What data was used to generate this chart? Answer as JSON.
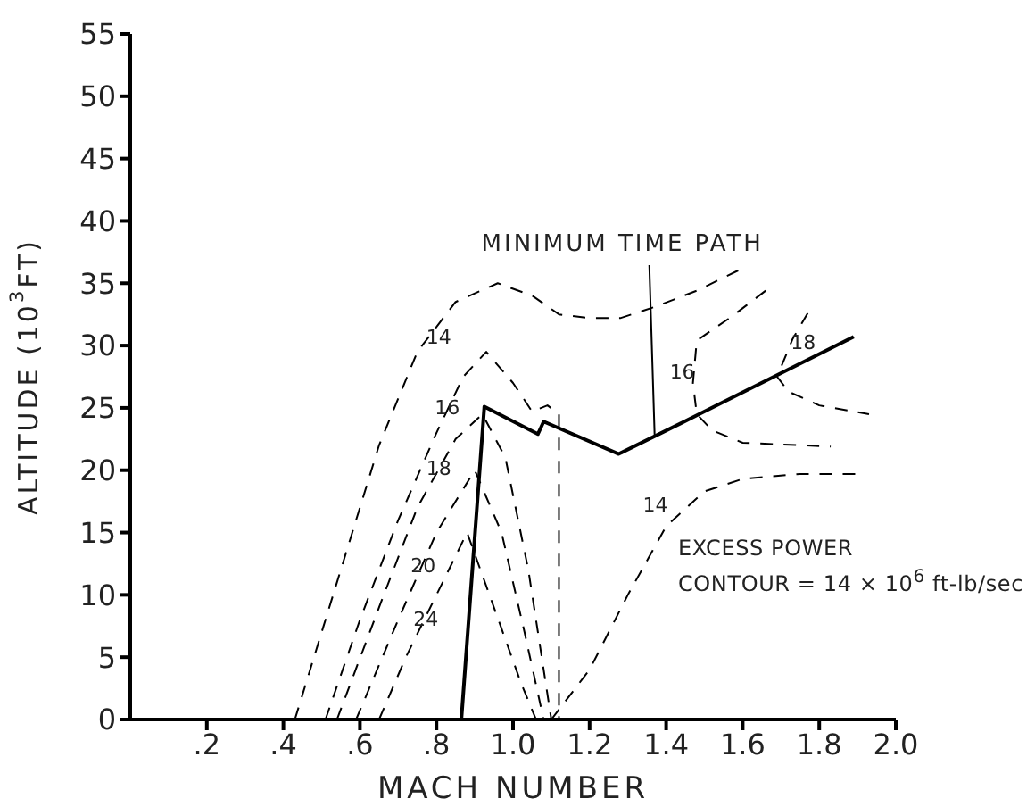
{
  "chart_data": {
    "type": "line",
    "xlabel": "MACH NUMBER",
    "ylabel": "ALTITUDE (10$^{3}$FT)",
    "xlim": [
      0,
      2.0
    ],
    "ylim": [
      0,
      55
    ],
    "xticks": [
      {
        "value": 0.2,
        "label": ".2"
      },
      {
        "value": 0.4,
        "label": ".4"
      },
      {
        "value": 0.6,
        "label": ".6"
      },
      {
        "value": 0.8,
        "label": ".8"
      },
      {
        "value": 1.0,
        "label": "1.0"
      },
      1.2,
      1.4,
      1.6,
      1.8,
      {
        "value": 2.0,
        "label": "2.0"
      }
    ],
    "yticks": [
      0,
      5,
      10,
      15,
      20,
      25,
      30,
      35,
      40,
      45,
      50,
      55
    ],
    "series": [
      {
        "name": "14",
        "color": "#000000",
        "line_style": "dashed",
        "x": [
          0.43,
          0.55,
          0.65,
          0.75,
          0.85,
          0.96,
          1.05,
          1.12,
          1.2,
          1.28,
          1.37,
          1.48,
          1.6
        ],
        "values": [
          0,
          12,
          22,
          29.5,
          33.5,
          35,
          34,
          32.5,
          32.2,
          32.2,
          33.1,
          34.4,
          36.2
        ]
      },
      {
        "name": "16",
        "color": "#000000",
        "line_style": "dashed",
        "x": [
          0.51,
          0.6,
          0.7,
          0.8,
          0.87,
          0.93,
          1.0,
          1.05,
          1.09,
          1.12,
          1.12
        ],
        "values": [
          0,
          8,
          16,
          23,
          27.5,
          29.5,
          27,
          24.7,
          25.2,
          24.5,
          0
        ]
      },
      {
        "name": "18",
        "color": "#000000",
        "line_style": "dashed",
        "x": [
          0.54,
          0.65,
          0.75,
          0.85,
          0.92,
          0.98,
          1.04,
          1.1
        ],
        "values": [
          0,
          9,
          17,
          22.5,
          24.5,
          21,
          12,
          0
        ]
      },
      {
        "name": "20",
        "color": "#000000",
        "line_style": "dashed",
        "x": [
          0.59,
          0.7,
          0.8,
          0.9,
          0.97,
          1.03,
          1.08
        ],
        "values": [
          0,
          8,
          15,
          20,
          15,
          7,
          0
        ]
      },
      {
        "name": "24",
        "color": "#000000",
        "line_style": "dashed",
        "x": [
          0.65,
          0.72,
          0.8,
          0.88,
          0.95,
          1.02,
          1.06
        ],
        "values": [
          0,
          5,
          10,
          15,
          9,
          3,
          0
        ]
      },
      {
        "name": "16",
        "color": "#000000",
        "line_style": "dashed",
        "x": [
          1.66,
          1.57,
          1.48,
          1.47,
          1.48,
          1.52,
          1.6,
          1.83
        ],
        "values": [
          34.4,
          32.3,
          30.4,
          27,
          24.5,
          23.2,
          22.2,
          21.9
        ]
      },
      {
        "name": "18",
        "color": "#000000",
        "line_style": "dashed",
        "x": [
          1.77,
          1.73,
          1.69,
          1.72,
          1.8,
          1.93
        ],
        "values": [
          32.6,
          30.5,
          27.5,
          26.3,
          25.2,
          24.5
        ]
      },
      {
        "name": "14",
        "color": "#000000",
        "line_style": "dashed",
        "x": [
          1.1,
          1.2,
          1.3,
          1.4,
          1.5,
          1.6,
          1.75,
          1.9
        ],
        "values": [
          0,
          4,
          10,
          15.5,
          18.3,
          19.3,
          19.7,
          19.7
        ]
      },
      {
        "color": "#000000",
        "line_style": "solid",
        "x": [
          0.865,
          0.925,
          1.065,
          1.08,
          1.276,
          1.48,
          1.89
        ],
        "values": [
          0,
          25.1,
          22.9,
          23.9,
          21.3,
          24.4,
          30.7
        ]
      }
    ],
    "annotations": [
      {
        "text": "MINIMUM TIME PATH",
        "x": 1.37,
        "y": 22.7
      },
      "EXCESS POWER",
      "CONTOUR = 14 × 10$^{6}$ ft-lb/sec"
    ]
  }
}
